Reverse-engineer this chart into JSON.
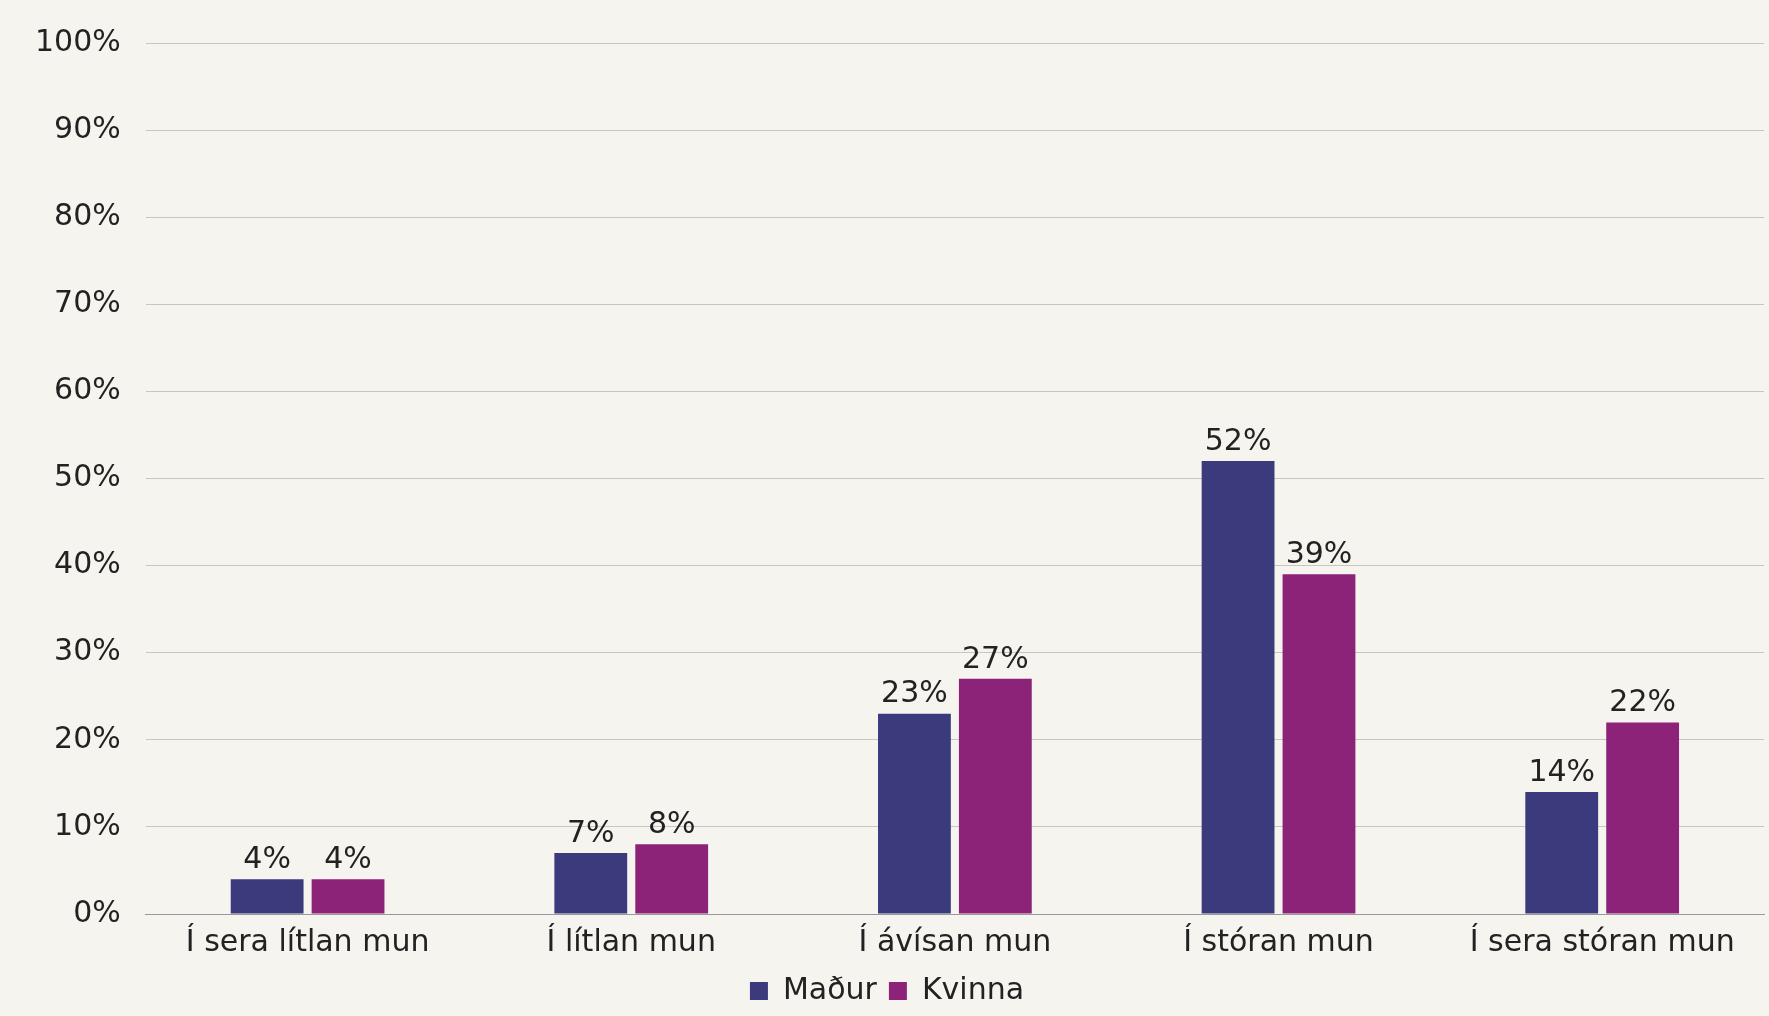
{
  "chart_data": {
    "type": "bar",
    "categories": [
      "Í sera lítlan mun",
      "Í lítlan mun",
      "Í ávísan mun",
      "Í stóran mun",
      "Í sera stóran mun"
    ],
    "series": [
      {
        "name": "Maður",
        "color": "#3b3a7c",
        "values": [
          4,
          7,
          23,
          52,
          14
        ],
        "value_labels": [
          "4%",
          "7%",
          "23%",
          "52%",
          "14%"
        ]
      },
      {
        "name": "Kvinna",
        "color": "#8c2378",
        "values": [
          4,
          8,
          27,
          39,
          22
        ],
        "value_labels": [
          "4%",
          "8%",
          "27%",
          "39%",
          "22%"
        ]
      }
    ],
    "ylim": [
      0,
      100
    ],
    "yticks": [
      {
        "value": 0,
        "label": "0%"
      },
      {
        "value": 10,
        "label": "10%"
      },
      {
        "value": 20,
        "label": "20%"
      },
      {
        "value": 30,
        "label": "30%"
      },
      {
        "value": 40,
        "label": "40%"
      },
      {
        "value": 50,
        "label": "50%"
      },
      {
        "value": 60,
        "label": "60%"
      },
      {
        "value": 70,
        "label": "70%"
      },
      {
        "value": 80,
        "label": "80%"
      },
      {
        "value": 90,
        "label": "90%"
      },
      {
        "value": 100,
        "label": "100%"
      }
    ],
    "grid": "y",
    "legend": "bottom"
  }
}
